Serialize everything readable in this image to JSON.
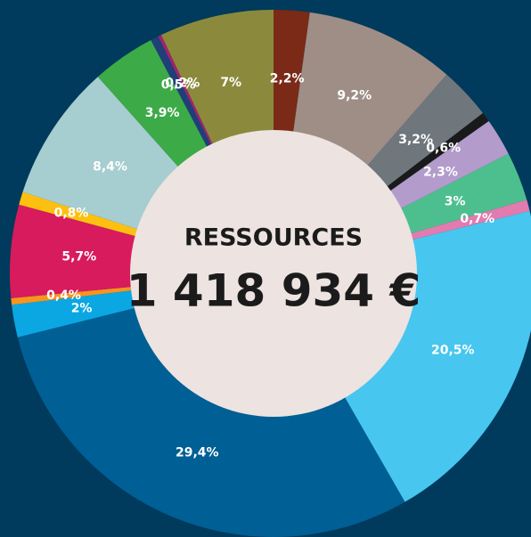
{
  "chart_data": {
    "type": "donut",
    "center_title": "RESSOURCES",
    "center_value": "1 418 934 €",
    "values": [
      2.2,
      9.2,
      3.2,
      0.6,
      2.3,
      3,
      0.7,
      20.5,
      29.4,
      2,
      0.4,
      5.7,
      0.8,
      8.4,
      3.9,
      0.5,
      0.2,
      7
    ],
    "value_labels": [
      "2,2%",
      "9,2%",
      "3,2%",
      "0,6%",
      "2,3%",
      "3%",
      "0,7%",
      "20,5%",
      "29,4%",
      "2%",
      "0,4%",
      "5,7%",
      "0,8%",
      "8,4%",
      "3,9%",
      "0,5%",
      "0,2%",
      "7%"
    ],
    "colors": [
      "#7a2a17",
      "#9e8e86",
      "#6f777d",
      "#1a1a1a",
      "#b39bcb",
      "#4dbf8f",
      "#e27bb0",
      "#47c6f0",
      "#005f95",
      "#0aa7e3",
      "#f7941d",
      "#d81b5c",
      "#fdc010",
      "#a6cdd0",
      "#3daa48",
      "#1f3f78",
      "#a3226e",
      "#8b8a3c"
    ]
  }
}
